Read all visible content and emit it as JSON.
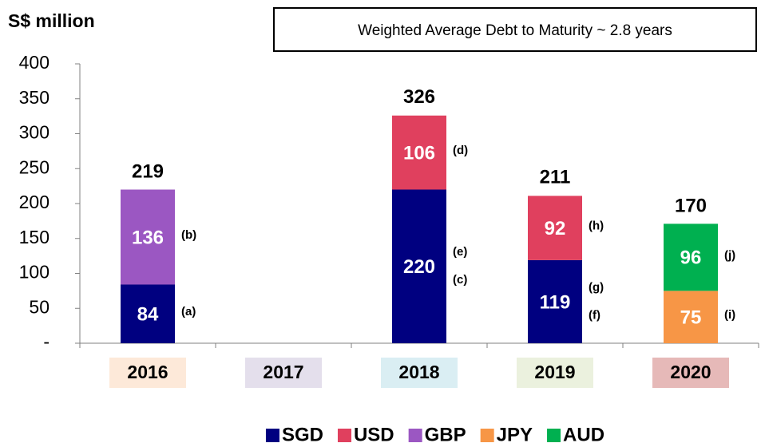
{
  "chart_data": {
    "type": "bar",
    "stacked": true,
    "title": "S$ million",
    "subtitle": "Weighted Average Debt to Maturity ~ 2.8 years",
    "categories": [
      "2016",
      "2017",
      "2018",
      "2019",
      "2020"
    ],
    "category_colors": [
      "#fde9d9",
      "#e4dfec",
      "#daeef3",
      "#ebf1de",
      "#e6b9b8"
    ],
    "series": [
      {
        "name": "SGD",
        "color": "#000080",
        "values": [
          84,
          null,
          220,
          119,
          null
        ],
        "notes": [
          [
            "(a)"
          ],
          null,
          [
            "(e)",
            "(c)"
          ],
          [
            "(g)",
            "(f)"
          ],
          null
        ]
      },
      {
        "name": "USD",
        "color": "#e0405e",
        "values": [
          null,
          null,
          106,
          92,
          null
        ],
        "notes": [
          null,
          null,
          [
            "(d)"
          ],
          [
            "(h)"
          ],
          null
        ]
      },
      {
        "name": "GBP",
        "color": "#9b57c2",
        "values": [
          136,
          null,
          null,
          null,
          null
        ],
        "notes": [
          [
            "(b)"
          ],
          null,
          null,
          null,
          null
        ]
      },
      {
        "name": "JPY",
        "color": "#f79646",
        "values": [
          null,
          null,
          null,
          null,
          75
        ],
        "notes": [
          null,
          null,
          null,
          null,
          [
            "(i)"
          ]
        ]
      },
      {
        "name": "AUD",
        "color": "#00b050",
        "values": [
          null,
          null,
          null,
          null,
          96
        ],
        "notes": [
          null,
          null,
          null,
          null,
          [
            "(j)"
          ]
        ]
      }
    ],
    "totals": [
      219,
      null,
      326,
      211,
      170
    ],
    "ylim": [
      0,
      400
    ],
    "yticks": [
      {
        "value": 0,
        "label": "-"
      },
      50,
      100,
      150,
      200,
      250,
      300,
      350,
      400
    ],
    "legend": "bottom"
  }
}
